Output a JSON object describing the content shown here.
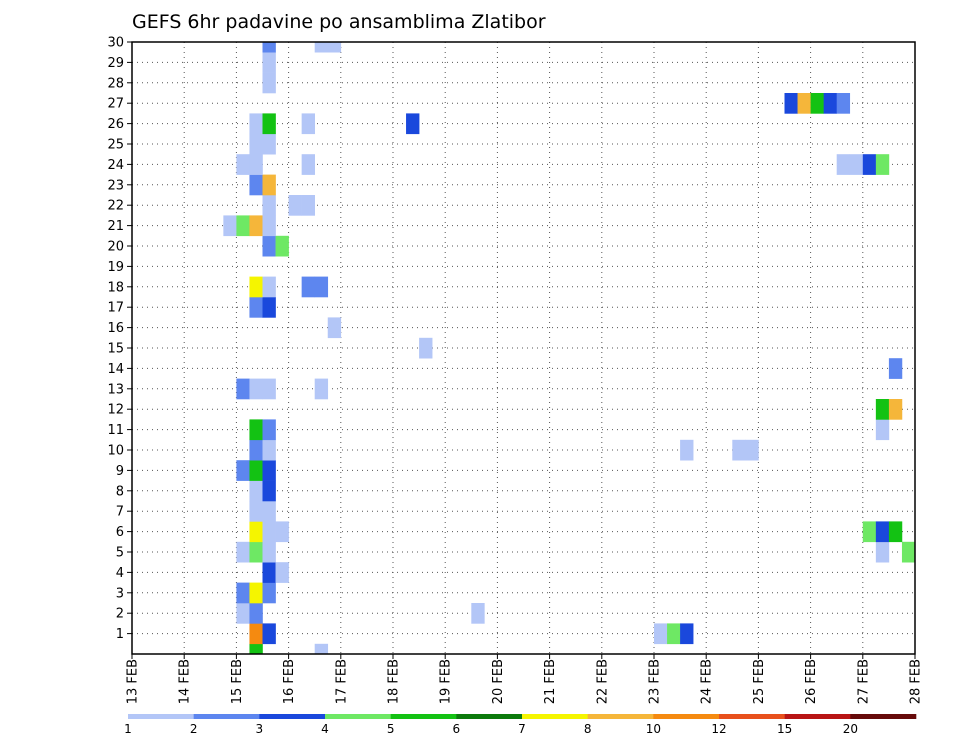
{
  "chart_data": {
    "type": "heatmap",
    "title": "GEFS 6hr padavine po ansamblima Zlatibor",
    "x_tick_labels": [
      "13 FEB",
      "14 FEB",
      "15 FEB",
      "16 FEB",
      "17 FEB",
      "18 FEB",
      "19 FEB",
      "20 FEB",
      "21 FEB",
      "22 FEB",
      "23 FEB",
      "24 FEB",
      "25 FEB",
      "26 FEB",
      "27 FEB",
      "28 FEB"
    ],
    "y_tick_labels": [
      "1",
      "2",
      "3",
      "4",
      "5",
      "6",
      "7",
      "8",
      "9",
      "10",
      "11",
      "12",
      "13",
      "14",
      "15",
      "16",
      "17",
      "18",
      "19",
      "20",
      "21",
      "22",
      "23",
      "24",
      "25",
      "26",
      "27",
      "28",
      "29",
      "30"
    ],
    "xlim": [
      13,
      28
    ],
    "ylim": [
      0,
      30
    ],
    "grid": true,
    "colorbar": {
      "labels": [
        "1",
        "2",
        "3",
        "4",
        "5",
        "6",
        "7",
        "8",
        "10",
        "12",
        "15",
        "20"
      ],
      "colors": [
        "#b3c6f7",
        "#5d86ef",
        "#1a48dc",
        "#6ee864",
        "#13c213",
        "#0c7a0c",
        "#f5f500",
        "#f5b63a",
        "#f58a10",
        "#e8501c",
        "#b81414",
        "#660a0a"
      ]
    },
    "x_step_days": 0.25,
    "cells": [
      {
        "m": 0,
        "t": 15.25,
        "c": "#13c213"
      },
      {
        "m": 0,
        "t": 16.5,
        "c": "#b3c6f7"
      },
      {
        "m": 1,
        "t": 15.25,
        "c": "#f58a10"
      },
      {
        "m": 1,
        "t": 15.5,
        "c": "#1a48dc"
      },
      {
        "m": 1,
        "t": 23.0,
        "c": "#b3c6f7"
      },
      {
        "m": 1,
        "t": 23.25,
        "c": "#6ee864"
      },
      {
        "m": 1,
        "t": 23.5,
        "c": "#1a48dc"
      },
      {
        "m": 2,
        "t": 15.0,
        "c": "#b3c6f7"
      },
      {
        "m": 2,
        "t": 15.25,
        "c": "#5d86ef"
      },
      {
        "m": 2,
        "t": 19.5,
        "c": "#b3c6f7"
      },
      {
        "m": 3,
        "t": 15.0,
        "c": "#5d86ef"
      },
      {
        "m": 3,
        "t": 15.25,
        "c": "#f5f500"
      },
      {
        "m": 3,
        "t": 15.5,
        "c": "#5d86ef"
      },
      {
        "m": 4,
        "t": 15.5,
        "c": "#1a48dc"
      },
      {
        "m": 4,
        "t": 15.75,
        "c": "#b3c6f7"
      },
      {
        "m": 5,
        "t": 15.0,
        "c": "#b3c6f7"
      },
      {
        "m": 5,
        "t": 15.25,
        "c": "#6ee864"
      },
      {
        "m": 5,
        "t": 15.5,
        "c": "#b3c6f7"
      },
      {
        "m": 5,
        "t": 27.25,
        "c": "#b3c6f7"
      },
      {
        "m": 5,
        "t": 27.75,
        "c": "#6ee864"
      },
      {
        "m": 6,
        "t": 15.25,
        "c": "#f5f500"
      },
      {
        "m": 6,
        "t": 15.5,
        "c": "#b3c6f7"
      },
      {
        "m": 6,
        "t": 15.75,
        "c": "#b3c6f7"
      },
      {
        "m": 6,
        "t": 27.0,
        "c": "#6ee864"
      },
      {
        "m": 6,
        "t": 27.25,
        "c": "#1a48dc"
      },
      {
        "m": 6,
        "t": 27.5,
        "c": "#13c213"
      },
      {
        "m": 7,
        "t": 15.25,
        "c": "#b3c6f7"
      },
      {
        "m": 7,
        "t": 15.5,
        "c": "#b3c6f7"
      },
      {
        "m": 8,
        "t": 15.25,
        "c": "#b3c6f7"
      },
      {
        "m": 8,
        "t": 15.5,
        "c": "#1a48dc"
      },
      {
        "m": 9,
        "t": 15.0,
        "c": "#5d86ef"
      },
      {
        "m": 9,
        "t": 15.25,
        "c": "#13c213"
      },
      {
        "m": 9,
        "t": 15.5,
        "c": "#1a48dc"
      },
      {
        "m": 10,
        "t": 15.25,
        "c": "#5d86ef"
      },
      {
        "m": 10,
        "t": 15.5,
        "c": "#b3c6f7"
      },
      {
        "m": 10,
        "t": 23.5,
        "c": "#b3c6f7"
      },
      {
        "m": 10,
        "t": 24.5,
        "c": "#b3c6f7"
      },
      {
        "m": 10,
        "t": 24.75,
        "c": "#b3c6f7"
      },
      {
        "m": 11,
        "t": 15.25,
        "c": "#13c213"
      },
      {
        "m": 11,
        "t": 15.5,
        "c": "#5d86ef"
      },
      {
        "m": 11,
        "t": 27.25,
        "c": "#b3c6f7"
      },
      {
        "m": 12,
        "t": 27.25,
        "c": "#13c213"
      },
      {
        "m": 12,
        "t": 27.5,
        "c": "#f5b63a"
      },
      {
        "m": 13,
        "t": 15.0,
        "c": "#5d86ef"
      },
      {
        "m": 13,
        "t": 15.25,
        "c": "#b3c6f7"
      },
      {
        "m": 13,
        "t": 15.5,
        "c": "#b3c6f7"
      },
      {
        "m": 13,
        "t": 16.5,
        "c": "#b3c6f7"
      },
      {
        "m": 14,
        "t": 27.5,
        "c": "#5d86ef"
      },
      {
        "m": 15,
        "t": 18.5,
        "c": "#b3c6f7"
      },
      {
        "m": 16,
        "t": 16.75,
        "c": "#b3c6f7"
      },
      {
        "m": 17,
        "t": 15.25,
        "c": "#5d86ef"
      },
      {
        "m": 17,
        "t": 15.5,
        "c": "#1a48dc"
      },
      {
        "m": 18,
        "t": 15.25,
        "c": "#f5f500"
      },
      {
        "m": 18,
        "t": 15.5,
        "c": "#b3c6f7"
      },
      {
        "m": 18,
        "t": 16.25,
        "c": "#5d86ef"
      },
      {
        "m": 18,
        "t": 16.5,
        "c": "#5d86ef"
      },
      {
        "m": 20,
        "t": 15.5,
        "c": "#5d86ef"
      },
      {
        "m": 20,
        "t": 15.75,
        "c": "#6ee864"
      },
      {
        "m": 21,
        "t": 14.75,
        "c": "#b3c6f7"
      },
      {
        "m": 21,
        "t": 15.0,
        "c": "#6ee864"
      },
      {
        "m": 21,
        "t": 15.25,
        "c": "#f5b63a"
      },
      {
        "m": 21,
        "t": 15.5,
        "c": "#b3c6f7"
      },
      {
        "m": 22,
        "t": 15.5,
        "c": "#b3c6f7"
      },
      {
        "m": 22,
        "t": 16.0,
        "c": "#b3c6f7"
      },
      {
        "m": 22,
        "t": 16.25,
        "c": "#b3c6f7"
      },
      {
        "m": 23,
        "t": 15.25,
        "c": "#5d86ef"
      },
      {
        "m": 23,
        "t": 15.5,
        "c": "#f5b63a"
      },
      {
        "m": 24,
        "t": 15.0,
        "c": "#b3c6f7"
      },
      {
        "m": 24,
        "t": 15.25,
        "c": "#b3c6f7"
      },
      {
        "m": 24,
        "t": 16.25,
        "c": "#b3c6f7"
      },
      {
        "m": 24,
        "t": 26.5,
        "c": "#b3c6f7"
      },
      {
        "m": 24,
        "t": 26.75,
        "c": "#b3c6f7"
      },
      {
        "m": 24,
        "t": 27.0,
        "c": "#1a48dc"
      },
      {
        "m": 24,
        "t": 27.25,
        "c": "#6ee864"
      },
      {
        "m": 25,
        "t": 15.25,
        "c": "#b3c6f7"
      },
      {
        "m": 25,
        "t": 15.5,
        "c": "#b3c6f7"
      },
      {
        "m": 26,
        "t": 15.25,
        "c": "#b3c6f7"
      },
      {
        "m": 26,
        "t": 15.5,
        "c": "#13c213"
      },
      {
        "m": 26,
        "t": 16.25,
        "c": "#b3c6f7"
      },
      {
        "m": 26,
        "t": 18.25,
        "c": "#1a48dc"
      },
      {
        "m": 27,
        "t": 25.5,
        "c": "#1a48dc"
      },
      {
        "m": 27,
        "t": 25.75,
        "c": "#f5b63a"
      },
      {
        "m": 27,
        "t": 26.0,
        "c": "#13c213"
      },
      {
        "m": 27,
        "t": 26.25,
        "c": "#1a48dc"
      },
      {
        "m": 27,
        "t": 26.5,
        "c": "#5d86ef"
      },
      {
        "m": 28,
        "t": 15.5,
        "c": "#b3c6f7"
      },
      {
        "m": 29,
        "t": 15.5,
        "c": "#b3c6f7"
      },
      {
        "m": 30,
        "t": 15.5,
        "c": "#5d86ef"
      },
      {
        "m": 30,
        "t": 16.5,
        "c": "#b3c6f7"
      },
      {
        "m": 30,
        "t": 16.75,
        "c": "#b3c6f7"
      }
    ]
  }
}
